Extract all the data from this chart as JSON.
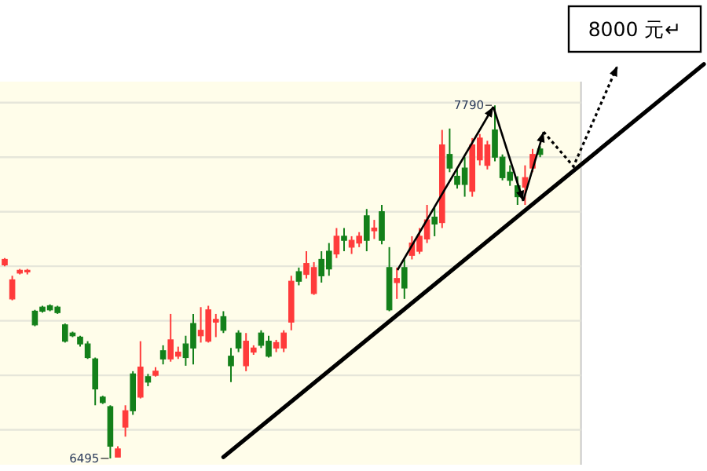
{
  "chart_data": {
    "type": "candlestick",
    "categories": [
      null,
      null,
      null,
      null,
      null,
      null,
      null,
      null,
      null,
      null,
      null,
      null,
      null,
      null,
      null,
      null,
      null,
      null,
      null,
      null,
      null,
      null,
      null,
      null,
      null,
      null,
      null,
      null,
      null,
      null,
      null,
      null,
      null,
      null,
      null,
      null,
      null,
      null,
      null,
      null,
      null,
      null,
      null,
      null,
      null,
      null,
      null,
      null,
      null,
      null,
      null,
      null,
      null,
      null,
      null,
      null,
      null,
      null,
      null,
      null,
      null,
      null,
      null,
      null,
      null,
      null,
      null,
      null,
      null,
      null,
      null,
      null
    ],
    "ohlc": [
      [
        7205,
        7230,
        7200,
        7225
      ],
      [
        7080,
        7165,
        7075,
        7150
      ],
      [
        7175,
        7190,
        7170,
        7185
      ],
      [
        7180,
        7190,
        7170,
        7185
      ],
      [
        7035,
        7040,
        6980,
        6985
      ],
      [
        7050,
        7055,
        7030,
        7035
      ],
      [
        7055,
        7060,
        7035,
        7040
      ],
      [
        7050,
        7055,
        7025,
        7030
      ],
      [
        6985,
        6990,
        6920,
        6925
      ],
      [
        6955,
        6960,
        6940,
        6945
      ],
      [
        6940,
        6945,
        6905,
        6915
      ],
      [
        6915,
        6925,
        6860,
        6865
      ],
      [
        6860,
        6865,
        6690,
        6750
      ],
      [
        6720,
        6725,
        6695,
        6700
      ],
      [
        6685,
        6690,
        6495,
        6540
      ],
      [
        6500,
        6540,
        6500,
        6530
      ],
      [
        6610,
        6690,
        6575,
        6670
      ],
      [
        6805,
        6815,
        6655,
        6670
      ],
      [
        6720,
        6925,
        6715,
        6830
      ],
      [
        6795,
        6805,
        6760,
        6775
      ],
      [
        6800,
        6830,
        6795,
        6815
      ],
      [
        6890,
        6910,
        6840,
        6860
      ],
      [
        6860,
        7025,
        6850,
        6930
      ],
      [
        6870,
        6905,
        6860,
        6885
      ],
      [
        6915,
        6945,
        6835,
        6865
      ],
      [
        6990,
        7025,
        6840,
        6900
      ],
      [
        6945,
        7050,
        6920,
        6965
      ],
      [
        6925,
        7055,
        6920,
        7040
      ],
      [
        6995,
        7025,
        6940,
        7005
      ],
      [
        7015,
        7035,
        6955,
        6965
      ],
      [
        6870,
        6900,
        6775,
        6835
      ],
      [
        6955,
        6965,
        6885,
        6900
      ],
      [
        6835,
        6955,
        6815,
        6925
      ],
      [
        6885,
        6910,
        6875,
        6900
      ],
      [
        6955,
        6965,
        6900,
        6910
      ],
      [
        6925,
        6945,
        6865,
        6870
      ],
      [
        6900,
        6930,
        6885,
        6920
      ],
      [
        6900,
        6965,
        6885,
        6955
      ],
      [
        6995,
        7165,
        6965,
        7145
      ],
      [
        7180,
        7195,
        7130,
        7145
      ],
      [
        7170,
        7255,
        7155,
        7210
      ],
      [
        7100,
        7215,
        7095,
        7195
      ],
      [
        7225,
        7255,
        7140,
        7165
      ],
      [
        7255,
        7285,
        7165,
        7190
      ],
      [
        7245,
        7340,
        7230,
        7310
      ],
      [
        7310,
        7340,
        7255,
        7295
      ],
      [
        7270,
        7310,
        7245,
        7295
      ],
      [
        7285,
        7325,
        7270,
        7310
      ],
      [
        7385,
        7410,
        7255,
        7295
      ],
      [
        7330,
        7370,
        7300,
        7340
      ],
      [
        7400,
        7425,
        7280,
        7295
      ],
      [
        7195,
        7270,
        7035,
        7040
      ],
      [
        7140,
        7195,
        7080,
        7155
      ],
      [
        7195,
        7225,
        7080,
        7120
      ],
      [
        7240,
        7310,
        7225,
        7285
      ],
      [
        7255,
        7340,
        7245,
        7310
      ],
      [
        7300,
        7425,
        7285,
        7370
      ],
      [
        7380,
        7415,
        7310,
        7355
      ],
      [
        7360,
        7700,
        7340,
        7645
      ],
      [
        7610,
        7705,
        7545,
        7560
      ],
      [
        7530,
        7555,
        7485,
        7500
      ],
      [
        7560,
        7600,
        7455,
        7500
      ],
      [
        7475,
        7670,
        7455,
        7645
      ],
      [
        7590,
        7685,
        7570,
        7670
      ],
      [
        7570,
        7660,
        7555,
        7645
      ],
      [
        7700,
        7790,
        7585,
        7600
      ],
      [
        7600,
        7610,
        7515,
        7525
      ],
      [
        7545,
        7570,
        7495,
        7515
      ],
      [
        7495,
        7530,
        7425,
        7455
      ],
      [
        7490,
        7570,
        7425,
        7525
      ],
      [
        7560,
        7630,
        7545,
        7610
      ],
      [
        7630,
        7640,
        7600,
        7610
      ]
    ],
    "colors": [
      "#ff3b3b",
      "#ff3b3b",
      "#ff3b3b",
      "#ff3b3b",
      "#13801a",
      "#13801a",
      "#13801a",
      "#13801a",
      "#13801a",
      "#13801a",
      "#13801a",
      "#13801a",
      "#13801a",
      "#13801a",
      "#13801a",
      "#ff3b3b",
      "#ff3b3b",
      "#13801a",
      "#ff3b3b",
      "#13801a",
      "#ff3b3b",
      "#13801a",
      "#ff3b3b",
      "#ff3b3b",
      "#13801a",
      "#13801a",
      "#ff3b3b",
      "#ff3b3b",
      "#ff3b3b",
      "#13801a",
      "#13801a",
      "#13801a",
      "#ff3b3b",
      "#ff3b3b",
      "#13801a",
      "#13801a",
      "#ff3b3b",
      "#ff3b3b",
      "#ff3b3b",
      "#13801a",
      "#ff3b3b",
      "#ff3b3b",
      "#13801a",
      "#13801a",
      "#ff3b3b",
      "#13801a",
      "#ff3b3b",
      "#ff3b3b",
      "#13801a",
      "#ff3b3b",
      "#13801a",
      "#13801a",
      "#ff3b3b",
      "#13801a",
      "#ff3b3b",
      "#ff3b3b",
      "#ff3b3b",
      "#13801a",
      "#ff3b3b",
      "#13801a",
      "#13801a",
      "#13801a",
      "#ff3b3b",
      "#ff3b3b",
      "#ff3b3b",
      "#13801a",
      "#13801a",
      "#13801a",
      "#13801a",
      "#ff3b3b",
      "#ff3b3b",
      "#13801a"
    ],
    "series": [
      {
        "type": "line",
        "color": "#000000",
        "values": [
          null,
          null,
          null,
          null,
          null,
          null,
          null,
          null,
          null,
          null,
          null,
          null,
          null,
          null,
          null,
          null,
          null,
          null,
          null,
          null,
          null,
          null,
          null,
          null,
          null,
          null,
          null,
          null,
          null,
          6500,
          null,
          null,
          null,
          null,
          null,
          null,
          null,
          null,
          null,
          null,
          null,
          null,
          null,
          null,
          null,
          null,
          null,
          null,
          null,
          null,
          null,
          null,
          null,
          null,
          null,
          null,
          null,
          null,
          null,
          null,
          null,
          null,
          null,
          null,
          null,
          null,
          null,
          null,
          null,
          null,
          null,
          7450
        ]
      }
    ],
    "ylim": [
      6472,
      7877
    ],
    "yticks": [
      {
        "value": 6600,
        "label": null
      },
      {
        "value": 6800,
        "label": null
      },
      {
        "value": 7000,
        "label": null
      },
      {
        "value": 7200,
        "label": null
      },
      {
        "value": 7400,
        "label": null
      },
      {
        "value": 7600,
        "label": null
      },
      {
        "value": 7800,
        "label": null
      }
    ],
    "grid": "y",
    "annotations": [
      "8000 元↵",
      "7790",
      "6495"
    ]
  }
}
